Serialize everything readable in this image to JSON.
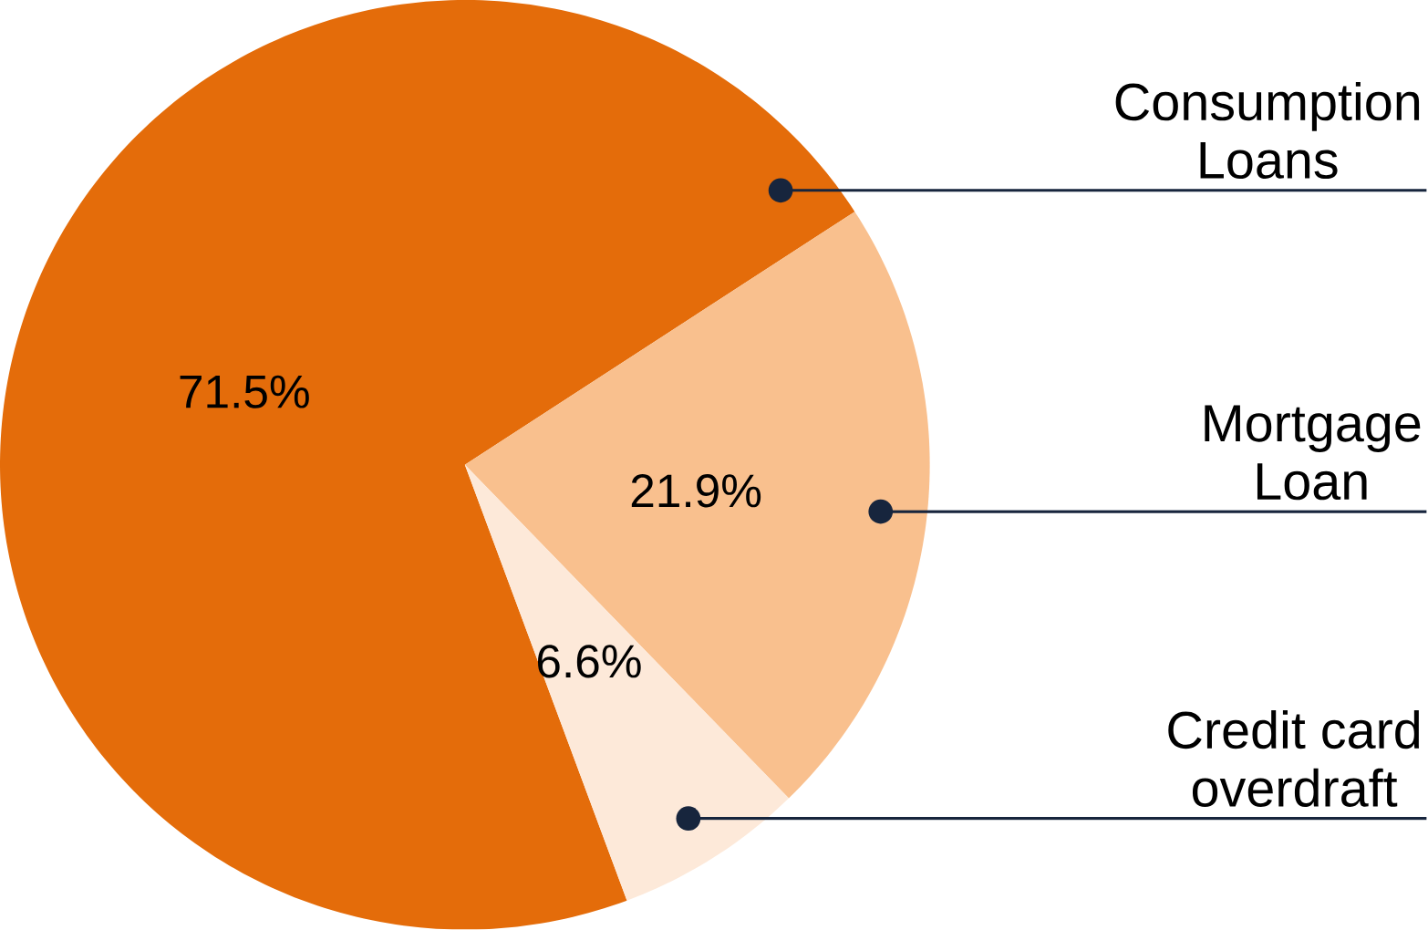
{
  "chart_data": {
    "type": "pie",
    "categories": [
      "Consumption Loans",
      "Mortgage Loan",
      "Credit card overdraft"
    ],
    "values": [
      71.5,
      21.9,
      6.6
    ],
    "colors": [
      "#e46c0a",
      "#f9c08e",
      "#fde9d9"
    ],
    "value_labels": [
      "71.5%",
      "21.9%",
      "6.6%"
    ]
  }
}
